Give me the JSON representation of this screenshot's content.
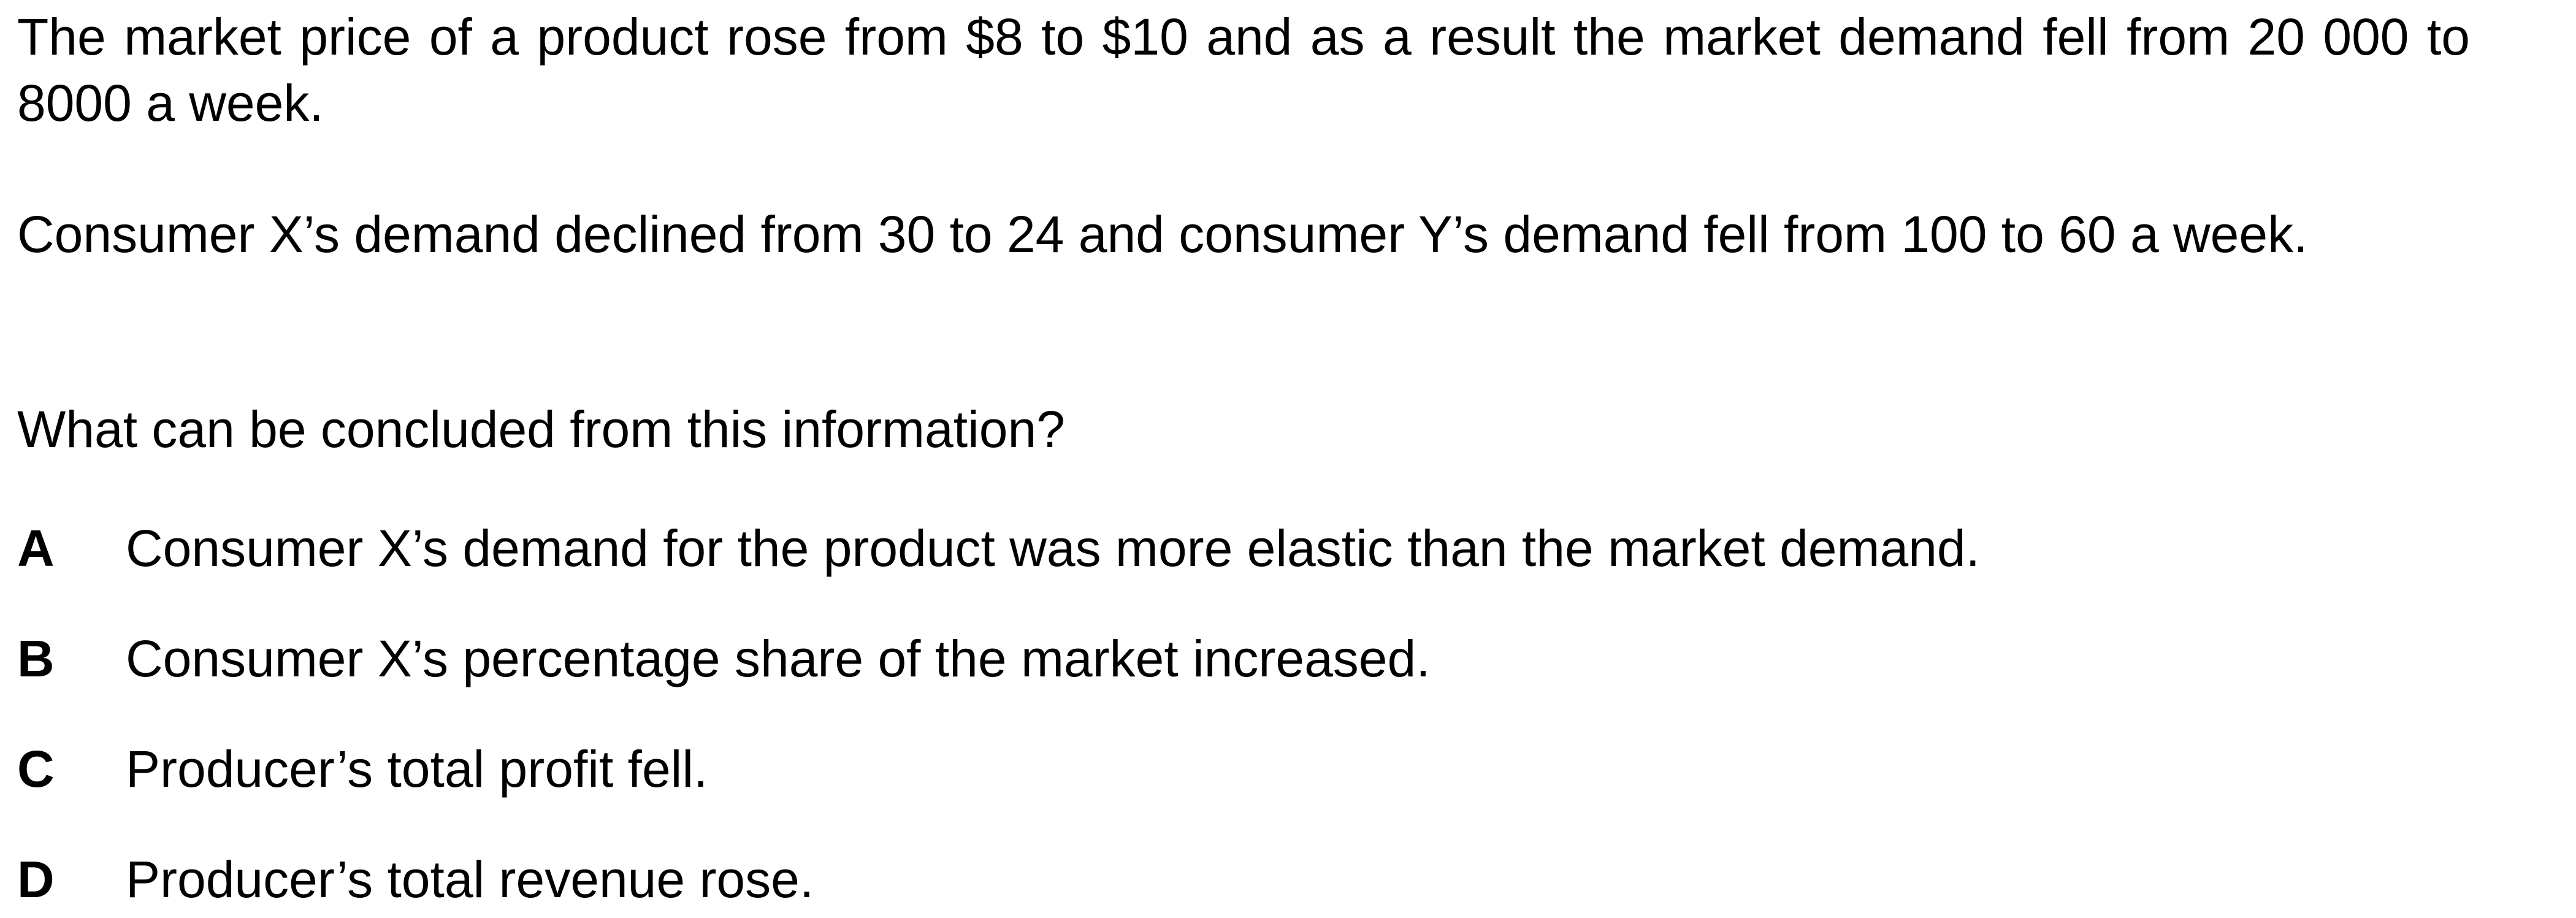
{
  "question": {
    "paragraphs": [
      "The market price of a product rose from $8 to $10 and as a result the market demand fell from 20 000 to 8000 a week.",
      "Consumer X’s demand declined from 30 to 24 and consumer Y’s demand fell from 100 to 60 a week.",
      "What can be concluded from this information?"
    ],
    "options": [
      {
        "letter": "A",
        "text": "Consumer X’s demand for the product was more elastic than the market demand."
      },
      {
        "letter": "B",
        "text": "Consumer X’s percentage share of the market increased."
      },
      {
        "letter": "C",
        "text": "Producer’s total profit fell."
      },
      {
        "letter": "D",
        "text": "Producer’s total revenue rose."
      }
    ]
  }
}
